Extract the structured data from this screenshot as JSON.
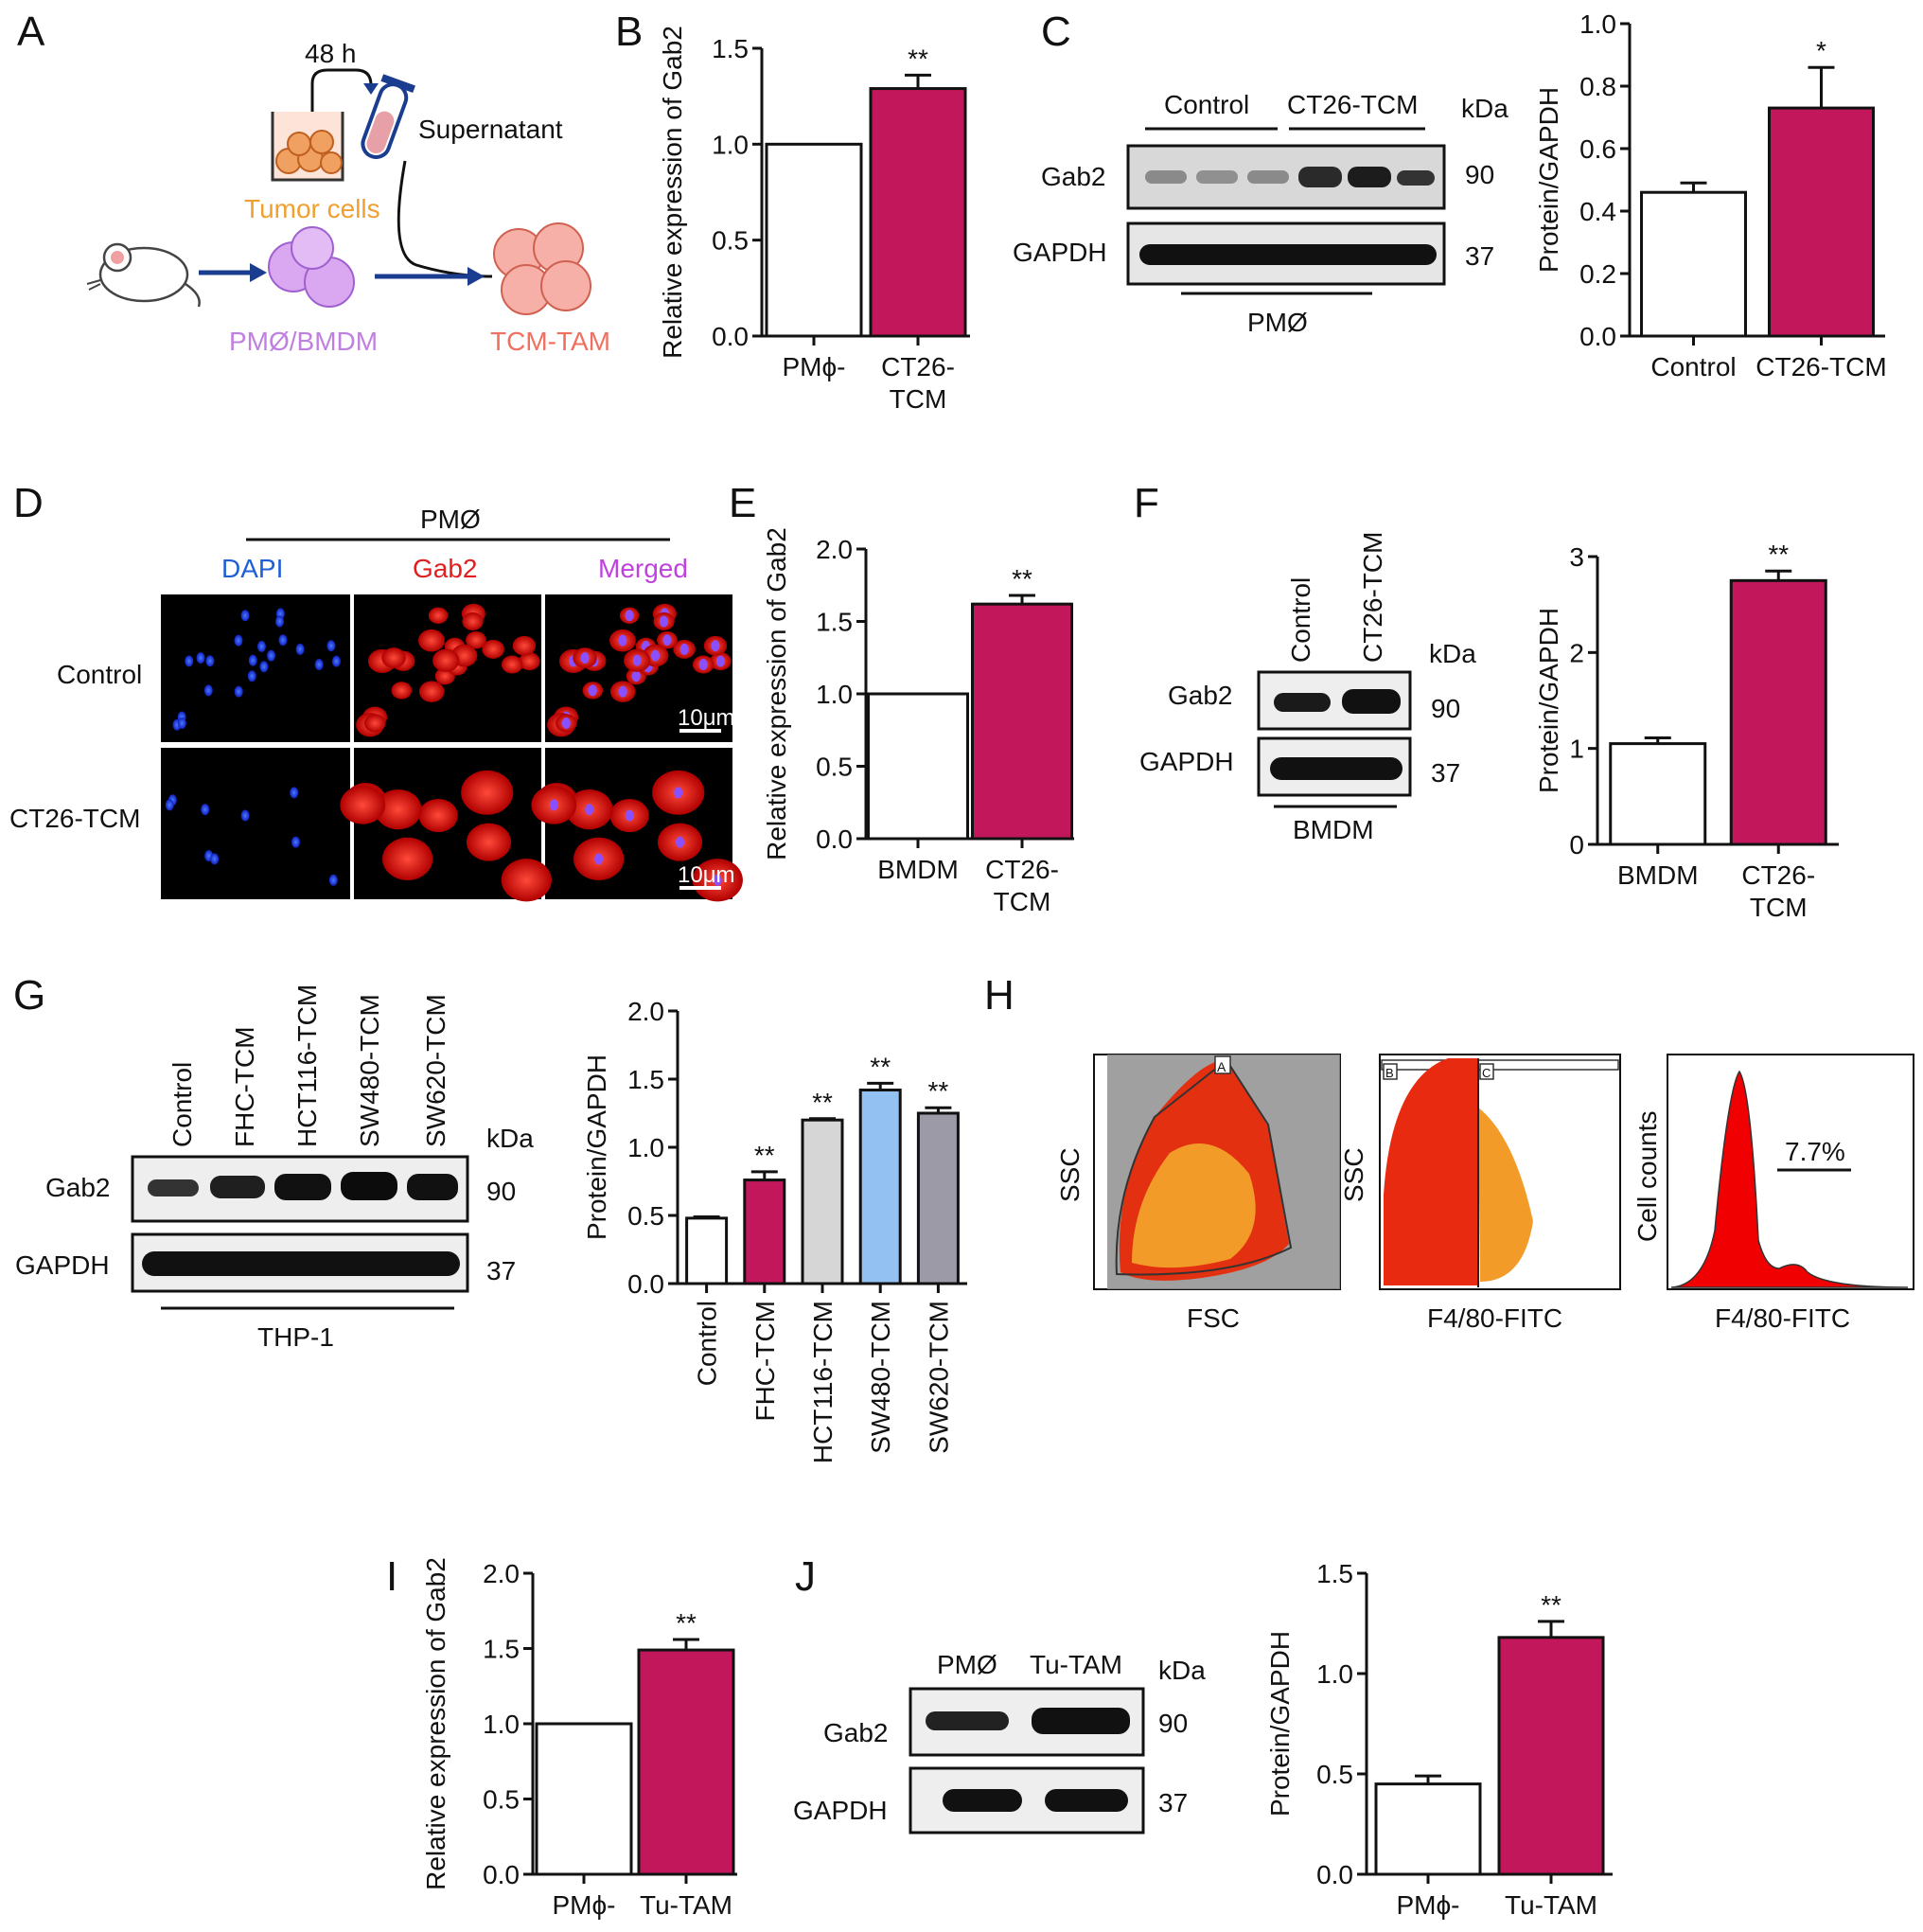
{
  "panels": {
    "A": {
      "label": "A",
      "time": "48 h",
      "supernatant": "Supernatant",
      "tumor_cells": "Tumor cells",
      "pm_bmdm": "PMØ/BMDM",
      "tcm_tam": "TCM-TAM"
    },
    "B": {
      "label": "B"
    },
    "C": {
      "label": "C",
      "groups": [
        "Control",
        "CT26-TCM"
      ],
      "bands": [
        "Gab2",
        "GAPDH"
      ],
      "kda": "kDa",
      "sizes": [
        "90",
        "37"
      ],
      "cell": "PMØ"
    },
    "D": {
      "label": "D",
      "title": "PMØ",
      "channels": [
        "DAPI",
        "Gab2",
        "Merged"
      ],
      "rows": [
        "Control",
        "CT26-TCM"
      ],
      "scale": "10μm"
    },
    "E": {
      "label": "E"
    },
    "F": {
      "label": "F",
      "groups": [
        "Control",
        "CT26-TCM"
      ],
      "bands": [
        "Gab2",
        "GAPDH"
      ],
      "kda": "kDa",
      "sizes": [
        "90",
        "37"
      ],
      "cell": "BMDM"
    },
    "G": {
      "label": "G",
      "groups": [
        "Control",
        "FHC-TCM",
        "HCT116-TCM",
        "SW480-TCM",
        "SW620-TCM"
      ],
      "bands": [
        "Gab2",
        "GAPDH"
      ],
      "kda": "kDa",
      "sizes": [
        "90",
        "37"
      ],
      "cell": "THP-1"
    },
    "H": {
      "label": "H",
      "plot1": {
        "ylabel": "SSC",
        "xlabel": "FSC",
        "gate": "A"
      },
      "plot2": {
        "ylabel": "SSC",
        "xlabel": "F4/80-FITC",
        "gates": [
          "B",
          "C"
        ]
      },
      "plot3": {
        "ylabel": "Cell counts",
        "xlabel": "F4/80-FITC",
        "percent": "7.7%"
      }
    },
    "I": {
      "label": "I"
    },
    "J": {
      "label": "J",
      "groups": [
        "PMØ",
        "Tu-TAM"
      ],
      "bands": [
        "Gab2",
        "GAPDH"
      ],
      "kda": "kDa",
      "sizes": [
        "90",
        "37"
      ]
    }
  },
  "colors": {
    "magenta": "#c2185b",
    "white": "#ffffff",
    "lightgray": "#d6d6d6",
    "lightblue": "#93c2f2",
    "gray": "#9b9aa6",
    "dapi": "#1f5fd6",
    "gab2": "#e02020",
    "merged": "#c040e0",
    "orange": "#f0a030",
    "purple": "#c080e0",
    "salmon": "#f07060"
  },
  "chart_data": [
    {
      "id": "B",
      "type": "bar",
      "categories": [
        "PMϕ-",
        "CT26-\nTCM"
      ],
      "values": [
        1.0,
        1.29
      ],
      "errors": [
        0,
        0.07
      ],
      "sig": [
        "",
        "**"
      ],
      "ylabel": "Relative expression of Gab2",
      "ylim": [
        0,
        1.5
      ],
      "ticks": [
        "0.0",
        "0.5",
        "1.0",
        "1.5"
      ],
      "colors": [
        "#ffffff",
        "#c2185b"
      ]
    },
    {
      "id": "C",
      "type": "bar",
      "categories": [
        "Control",
        "CT26-TCM"
      ],
      "values": [
        0.46,
        0.73
      ],
      "errors": [
        0.03,
        0.13
      ],
      "sig": [
        "",
        "*"
      ],
      "ylabel": "Protein/GAPDH",
      "ylim": [
        0,
        1.0
      ],
      "ticks": [
        "0.0",
        "0.2",
        "0.4",
        "0.6",
        "0.8",
        "1.0"
      ],
      "colors": [
        "#ffffff",
        "#c2185b"
      ]
    },
    {
      "id": "E",
      "type": "bar",
      "categories": [
        "BMDM",
        "CT26-\nTCM"
      ],
      "values": [
        1.0,
        1.62
      ],
      "errors": [
        0,
        0.06
      ],
      "sig": [
        "",
        "**"
      ],
      "ylabel": "Relative expression of Gab2",
      "ylim": [
        0,
        2.0
      ],
      "ticks": [
        "0.0",
        "0.5",
        "1.0",
        "1.5",
        "2.0"
      ],
      "colors": [
        "#ffffff",
        "#c2185b"
      ]
    },
    {
      "id": "F",
      "type": "bar",
      "categories": [
        "BMDM",
        "CT26-\nTCM"
      ],
      "values": [
        1.05,
        2.75
      ],
      "errors": [
        0.06,
        0.1
      ],
      "sig": [
        "",
        "**"
      ],
      "ylabel": "Protein/GAPDH",
      "ylim": [
        0,
        3
      ],
      "ticks": [
        "0",
        "1",
        "2",
        "3"
      ],
      "colors": [
        "#ffffff",
        "#c2185b"
      ]
    },
    {
      "id": "G",
      "type": "bar",
      "categories": [
        "Control",
        "FHC-TCM",
        "HCT116-TCM",
        "SW480-TCM",
        "SW620-TCM"
      ],
      "values": [
        0.48,
        0.76,
        1.2,
        1.42,
        1.25
      ],
      "errors": [
        0.01,
        0.06,
        0.01,
        0.05,
        0.04
      ],
      "sig": [
        "",
        "**",
        "**",
        "**",
        "**"
      ],
      "ylabel": "Protein/GAPDH",
      "ylim": [
        0,
        2.0
      ],
      "ticks": [
        "0.0",
        "0.5",
        "1.0",
        "1.5",
        "2.0"
      ],
      "colors": [
        "#ffffff",
        "#c2185b",
        "#d6d6d6",
        "#93c2f2",
        "#9b9aa6"
      ]
    },
    {
      "id": "I",
      "type": "bar",
      "categories": [
        "PMϕ-",
        "Tu-TAM"
      ],
      "values": [
        1.0,
        1.49
      ],
      "errors": [
        0,
        0.07
      ],
      "sig": [
        "",
        "**"
      ],
      "ylabel": "Relative expression of Gab2",
      "ylim": [
        0,
        2.0
      ],
      "ticks": [
        "0.0",
        "0.5",
        "1.0",
        "1.5",
        "2.0"
      ],
      "colors": [
        "#ffffff",
        "#c2185b"
      ]
    },
    {
      "id": "J",
      "type": "bar",
      "categories": [
        "PMϕ-",
        "Tu-TAM"
      ],
      "values": [
        0.45,
        1.18
      ],
      "errors": [
        0.04,
        0.08
      ],
      "sig": [
        "",
        "**"
      ],
      "ylabel": "Protein/GAPDH",
      "ylim": [
        0,
        1.5
      ],
      "ticks": [
        "0.0",
        "0.5",
        "1.0",
        "1.5"
      ],
      "colors": [
        "#ffffff",
        "#c2185b"
      ]
    }
  ]
}
